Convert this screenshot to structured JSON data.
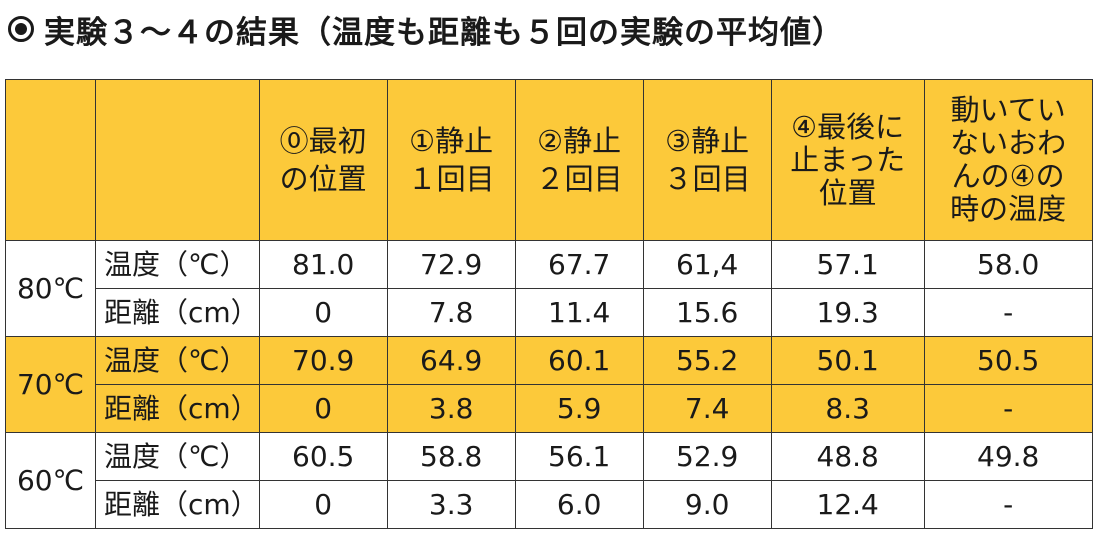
{
  "title": "実験３～４の結果（温度も距離も５回の実験の平均値）",
  "table": {
    "headers": [
      "",
      "",
      "⓪最初\nの位置",
      "①静止\n１回目",
      "②静止\n２回目",
      "③静止\n３回目",
      "④最後に\n止まった\n位置",
      "動いてい\nないおわ\nんの④の\n時の温度"
    ],
    "groups": [
      {
        "label": "80℃",
        "band": "white",
        "rows": [
          {
            "label": "温度（℃）",
            "values": [
              "81.0",
              "72.9",
              "67.7",
              "61,4",
              "57.1",
              "58.0"
            ]
          },
          {
            "label": "距離（cm）",
            "values": [
              "0",
              "7.8",
              "11.4",
              "15.6",
              "19.3",
              "-"
            ]
          }
        ]
      },
      {
        "label": "70℃",
        "band": "yellow",
        "rows": [
          {
            "label": "温度（℃）",
            "values": [
              "70.9",
              "64.9",
              "60.1",
              "55.2",
              "50.1",
              "50.5"
            ]
          },
          {
            "label": "距離（cm）",
            "values": [
              "0",
              "3.8",
              "5.9",
              "7.4",
              "8.3",
              "-"
            ]
          }
        ]
      },
      {
        "label": "60℃",
        "band": "white",
        "rows": [
          {
            "label": "温度（℃）",
            "values": [
              "60.5",
              "58.8",
              "56.1",
              "52.9",
              "48.8",
              "49.8"
            ]
          },
          {
            "label": "距離（cm）",
            "values": [
              "0",
              "3.3",
              "6.0",
              "9.0",
              "12.4",
              "-"
            ]
          }
        ]
      }
    ]
  },
  "colors": {
    "accent": "#fcc93a",
    "border": "#333333",
    "text": "#1a1a1a",
    "background": "#ffffff"
  }
}
